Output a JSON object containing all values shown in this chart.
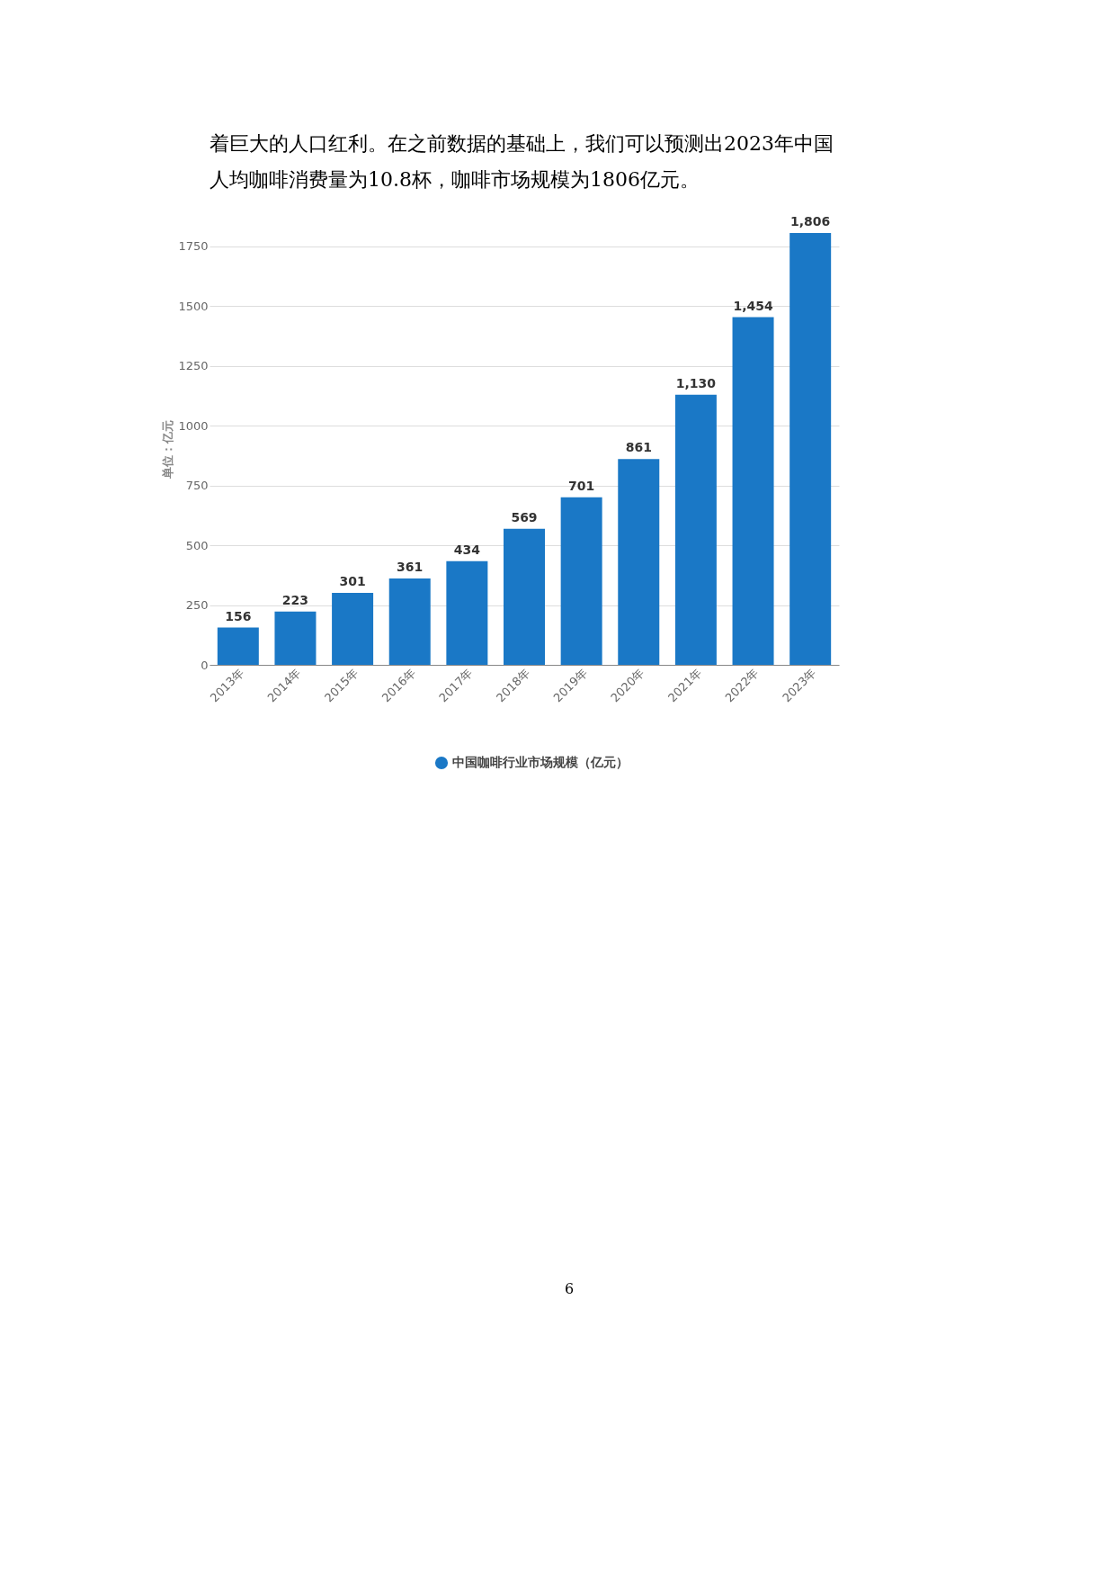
{
  "chart_data": {
    "type": "bar",
    "annotations": [
      "着巨大的人口红利。在之前数据的基础上，我们可以预测出2023年中国",
      "人均咖啡消费量为10.8杯，咖啡市场规模为1806亿元。",
      "6"
    ],
    "ylabel": "单位：亿元",
    "categories": [
      "2013年",
      "2014年",
      "2015年",
      "2016年",
      "2017年",
      "2018年",
      "2019年",
      "2020年",
      "2021年",
      "2022年",
      "2023年"
    ],
    "series": [
      {
        "name": "中国咖啡行业市场规模（亿元）",
        "color": "#1a78c6",
        "values": [
          156,
          223,
          301,
          361,
          434,
          569,
          701,
          861,
          1130,
          1454,
          1806
        ]
      }
    ],
    "value_labels": [
      "156",
      "223",
      "301",
      "361",
      "434",
      "569",
      "701",
      "861",
      "1,130",
      "1,454",
      "1,806"
    ],
    "ylim": [
      0,
      1806
    ],
    "yticks": [
      0,
      250,
      500,
      750,
      1000,
      1250,
      1500,
      1750
    ],
    "grid": "y",
    "legend": "bottom"
  }
}
